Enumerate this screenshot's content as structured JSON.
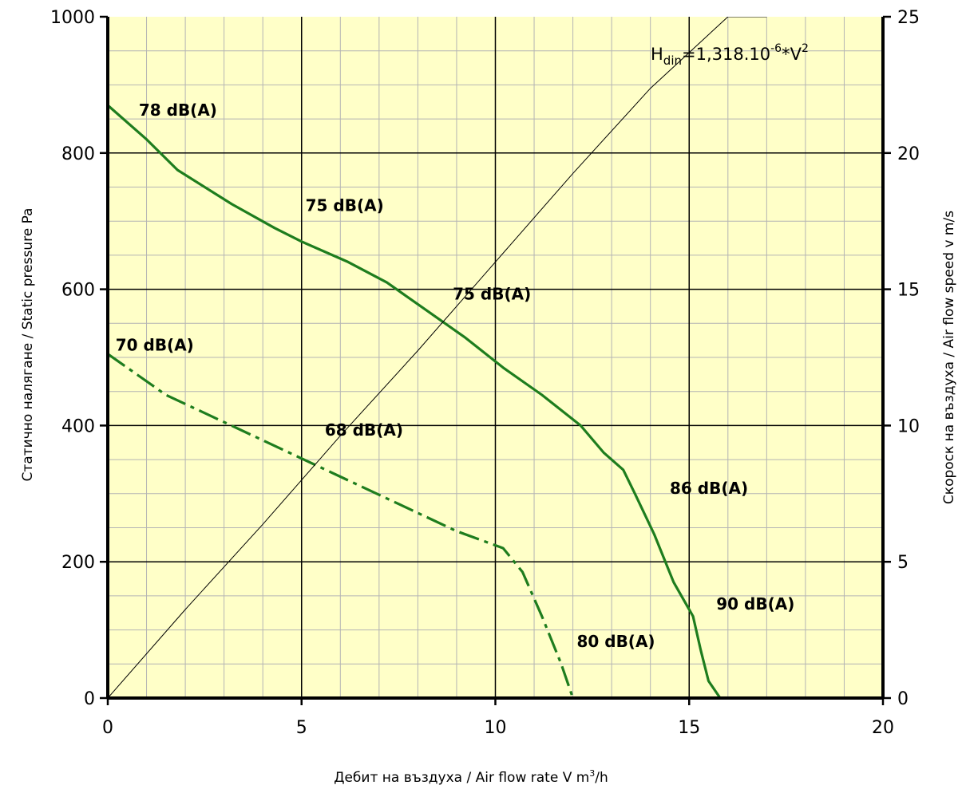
{
  "chart_data": {
    "type": "line",
    "colors": {
      "plot_background": "#ffffc8",
      "curve": "#1e7d1e",
      "grid_major": "#000000",
      "grid_minor": "#b4b4b4",
      "axis": "#000000"
    },
    "xlabel_parts": [
      "Дебит на въздуха / Air flow rate V m",
      "3",
      "/h"
    ],
    "ylabel_left": "Статично налягане / Static pressure Pa",
    "ylabel_right": "Скороск на въздуха / Air flow speed v m/s",
    "xlim": [
      0,
      20
    ],
    "ylim_left": [
      0,
      1000
    ],
    "ylim_right": [
      0,
      25
    ],
    "x_ticks": [
      "0",
      "5",
      "10",
      "15",
      "20"
    ],
    "y_ticks_left": [
      "0",
      "200",
      "400",
      "600",
      "800",
      "1000"
    ],
    "y_ticks_right": [
      "0",
      "5",
      "10",
      "15",
      "20",
      "25"
    ],
    "grid": true,
    "formula": {
      "base": "H",
      "sub": "din",
      "middle": "=1,318.10",
      "sup1": "-6",
      "after": "*V",
      "sup2": "2"
    },
    "series": [
      {
        "style": "solid",
        "x": [
          0,
          1,
          1.8,
          3.2,
          4.3,
          5,
          6.2,
          7.2,
          8.2,
          9.2,
          10.2,
          11.2,
          12.2,
          12.8,
          13.3,
          13.6,
          14.1,
          14.6,
          15.1,
          15.3,
          15.5,
          15.8
        ],
        "y": [
          870,
          820,
          775,
          725,
          690,
          670,
          640,
          610,
          570,
          530,
          485,
          445,
          400,
          360,
          335,
          300,
          240,
          170,
          120,
          70,
          25,
          0
        ]
      },
      {
        "style": "dashed",
        "x": [
          0,
          1.5,
          3,
          4.5,
          6,
          7.5,
          9,
          10.2,
          10.7,
          11.2,
          11.7,
          12
        ],
        "y": [
          505,
          445,
          405,
          365,
          325,
          285,
          245,
          220,
          185,
          120,
          50,
          0
        ]
      },
      {
        "style": "thin",
        "x": [
          0,
          2,
          4,
          6,
          8,
          10,
          12,
          14,
          16,
          17
        ],
        "y": [
          0,
          130,
          255,
          385,
          510,
          640,
          770,
          895,
          1000,
          1000
        ]
      }
    ],
    "annotations": [
      {
        "text": "78 dB(A)",
        "x": 0.8,
        "y": 855
      },
      {
        "text": "75 dB(A)",
        "x": 5.1,
        "y": 715
      },
      {
        "text": "75 dB(A)",
        "x": 8.9,
        "y": 585
      },
      {
        "text": "70 dB(A)",
        "x": 0.2,
        "y": 510
      },
      {
        "text": "68 dB(A)",
        "x": 5.6,
        "y": 385
      },
      {
        "text": "86 dB(A)",
        "x": 14.5,
        "y": 300
      },
      {
        "text": "90 dB(A)",
        "x": 15.7,
        "y": 130
      },
      {
        "text": "80 dB(A)",
        "x": 12.1,
        "y": 75
      }
    ]
  }
}
